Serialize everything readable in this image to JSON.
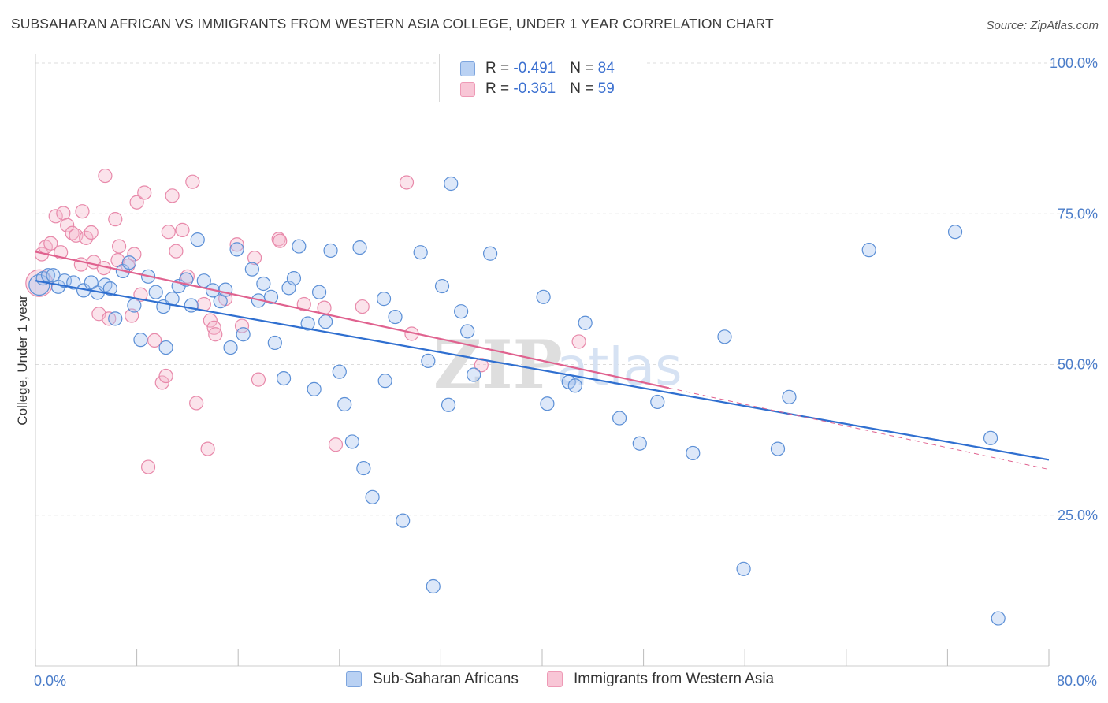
{
  "title": "SUBSAHARAN AFRICAN VS IMMIGRANTS FROM WESTERN ASIA COLLEGE, UNDER 1 YEAR CORRELATION CHART",
  "source": "Source: ZipAtlas.com",
  "legend": {
    "rows": [
      {
        "r_label": "R = ",
        "r_value": "-0.491",
        "n_label": "N = ",
        "n_value": "84"
      },
      {
        "r_label": "R = ",
        "r_value": "-0.361",
        "n_label": "N = ",
        "n_value": "59"
      }
    ]
  },
  "bottom_legend": [
    "Sub-Saharan Africans",
    "Immigrants from Western Asia"
  ],
  "colors": {
    "blue_fill": "#a9c6f0",
    "blue_stroke": "#5b8fd6",
    "blue_line": "#2f6fd0",
    "pink_fill": "#f6b8cd",
    "pink_stroke": "#e889aa",
    "pink_line": "#e0628f",
    "grid": "#dcdcdc",
    "tick_text": "#4a7cc9"
  },
  "chart_data": {
    "type": "scatter",
    "ylabel": "College, Under 1 year",
    "xlim": [
      0,
      80
    ],
    "ylim": [
      0,
      100
    ],
    "x_tick_labels": [
      "0.0%",
      "80.0%"
    ],
    "y_ticks": [
      25,
      50,
      75,
      100
    ],
    "y_tick_labels": [
      "25.0%",
      "50.0%",
      "75.0%",
      "100.0%"
    ],
    "grid": "horizontal dashed",
    "watermark": "ZIPatlas",
    "series": [
      {
        "name": "Sub-Saharan Africans",
        "color": "blue",
        "trend": {
          "x": [
            0,
            80
          ],
          "y": [
            63.9,
            34.2
          ]
        },
        "points": [
          [
            0.3,
            63.2
          ],
          [
            0.6,
            64.3
          ],
          [
            1.0,
            64.8
          ],
          [
            1.4,
            64.8
          ],
          [
            1.8,
            62.9
          ],
          [
            2.3,
            63.9
          ],
          [
            3.0,
            63.6
          ],
          [
            3.8,
            62.3
          ],
          [
            4.4,
            63.6
          ],
          [
            4.9,
            61.9
          ],
          [
            5.5,
            63.2
          ],
          [
            5.9,
            62.6
          ],
          [
            6.3,
            57.6
          ],
          [
            6.9,
            65.5
          ],
          [
            7.4,
            66.9
          ],
          [
            7.8,
            59.8
          ],
          [
            8.3,
            54.1
          ],
          [
            8.9,
            64.6
          ],
          [
            9.5,
            62.0
          ],
          [
            10.1,
            59.6
          ],
          [
            10.3,
            52.8
          ],
          [
            10.8,
            60.9
          ],
          [
            11.3,
            63.0
          ],
          [
            11.9,
            64.1
          ],
          [
            12.3,
            59.8
          ],
          [
            12.8,
            70.7
          ],
          [
            13.3,
            63.9
          ],
          [
            14.0,
            62.3
          ],
          [
            14.6,
            60.5
          ],
          [
            15.0,
            62.4
          ],
          [
            15.4,
            52.8
          ],
          [
            15.9,
            69.1
          ],
          [
            16.4,
            55.0
          ],
          [
            17.1,
            65.8
          ],
          [
            17.6,
            60.6
          ],
          [
            18.0,
            63.4
          ],
          [
            18.6,
            61.2
          ],
          [
            18.9,
            53.6
          ],
          [
            19.6,
            47.7
          ],
          [
            20.0,
            62.7
          ],
          [
            20.4,
            64.3
          ],
          [
            20.8,
            69.6
          ],
          [
            21.5,
            56.8
          ],
          [
            22.0,
            45.9
          ],
          [
            22.4,
            62.0
          ],
          [
            22.9,
            57.1
          ],
          [
            23.3,
            68.9
          ],
          [
            24.0,
            48.8
          ],
          [
            24.4,
            43.4
          ],
          [
            25.0,
            37.2
          ],
          [
            25.6,
            69.4
          ],
          [
            25.9,
            32.8
          ],
          [
            26.6,
            28.0
          ],
          [
            27.5,
            60.9
          ],
          [
            27.6,
            47.3
          ],
          [
            28.4,
            57.9
          ],
          [
            29.0,
            24.1
          ],
          [
            30.4,
            68.6
          ],
          [
            31.0,
            50.6
          ],
          [
            31.4,
            13.2
          ],
          [
            32.1,
            63.0
          ],
          [
            32.6,
            43.3
          ],
          [
            32.8,
            80.0
          ],
          [
            33.6,
            58.8
          ],
          [
            34.1,
            55.5
          ],
          [
            34.6,
            48.3
          ],
          [
            35.9,
            68.4
          ],
          [
            40.1,
            61.2
          ],
          [
            40.4,
            43.5
          ],
          [
            42.1,
            47.1
          ],
          [
            42.6,
            46.5
          ],
          [
            43.4,
            56.9
          ],
          [
            46.1,
            41.1
          ],
          [
            47.7,
            36.9
          ],
          [
            49.1,
            43.8
          ],
          [
            51.9,
            35.3
          ],
          [
            54.4,
            54.6
          ],
          [
            55.9,
            16.1
          ],
          [
            58.6,
            36.0
          ],
          [
            59.5,
            44.6
          ],
          [
            65.8,
            69.0
          ],
          [
            72.6,
            72.0
          ],
          [
            75.4,
            37.8
          ],
          [
            76.0,
            7.9
          ]
        ]
      },
      {
        "name": "Immigrants from Western Asia",
        "color": "pink",
        "trend": {
          "x": [
            0,
            50
          ],
          "y": [
            68.7,
            46.1
          ]
        },
        "trend_dashed": {
          "x": [
            50,
            80
          ],
          "y": [
            46.1,
            32.6
          ]
        },
        "points": [
          [
            0.5,
            68.3
          ],
          [
            0.8,
            69.5
          ],
          [
            1.2,
            70.1
          ],
          [
            1.6,
            74.6
          ],
          [
            2.0,
            68.6
          ],
          [
            2.2,
            75.1
          ],
          [
            2.5,
            73.1
          ],
          [
            2.9,
            71.8
          ],
          [
            3.2,
            71.4
          ],
          [
            3.6,
            66.6
          ],
          [
            3.7,
            75.4
          ],
          [
            4.0,
            71.0
          ],
          [
            4.4,
            71.9
          ],
          [
            4.6,
            67.0
          ],
          [
            5.0,
            58.4
          ],
          [
            5.4,
            66.0
          ],
          [
            5.5,
            81.3
          ],
          [
            5.8,
            57.6
          ],
          [
            6.3,
            74.1
          ],
          [
            6.5,
            67.3
          ],
          [
            6.6,
            69.6
          ],
          [
            7.3,
            66.4
          ],
          [
            7.6,
            58.1
          ],
          [
            7.8,
            68.3
          ],
          [
            8.0,
            76.9
          ],
          [
            8.3,
            61.6
          ],
          [
            8.6,
            78.5
          ],
          [
            8.9,
            33.0
          ],
          [
            9.4,
            54.0
          ],
          [
            10.0,
            47.0
          ],
          [
            10.3,
            48.1
          ],
          [
            10.5,
            72.0
          ],
          [
            10.8,
            78.0
          ],
          [
            11.1,
            68.8
          ],
          [
            11.6,
            72.3
          ],
          [
            12.0,
            64.6
          ],
          [
            12.4,
            80.3
          ],
          [
            12.7,
            43.6
          ],
          [
            13.3,
            60.0
          ],
          [
            13.6,
            36.0
          ],
          [
            13.8,
            57.3
          ],
          [
            14.1,
            56.1
          ],
          [
            14.2,
            55.0
          ],
          [
            15.0,
            60.9
          ],
          [
            15.9,
            69.9
          ],
          [
            16.3,
            56.4
          ],
          [
            17.3,
            67.7
          ],
          [
            17.6,
            47.5
          ],
          [
            19.2,
            70.8
          ],
          [
            19.3,
            70.5
          ],
          [
            21.2,
            60.0
          ],
          [
            22.8,
            59.4
          ],
          [
            23.7,
            36.7
          ],
          [
            25.8,
            59.6
          ],
          [
            29.3,
            80.2
          ],
          [
            29.7,
            55.1
          ],
          [
            35.2,
            49.9
          ],
          [
            42.9,
            53.8
          ],
          [
            0.3,
            63.5
          ]
        ]
      }
    ]
  }
}
